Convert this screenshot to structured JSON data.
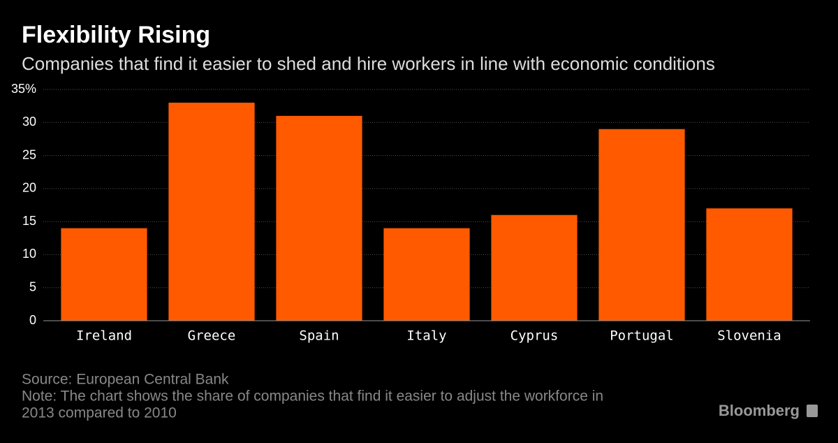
{
  "chart_data": {
    "type": "bar",
    "title": "Flexibility Rising",
    "subtitle": "Companies that find it easier to shed and hire workers in line with economic conditions",
    "categories": [
      "Ireland",
      "Greece",
      "Spain",
      "Italy",
      "Cyprus",
      "Portugal",
      "Slovenia"
    ],
    "values": [
      14,
      33,
      31,
      14,
      16,
      29,
      17
    ],
    "color": "#ff5a00",
    "ylim": [
      0,
      35
    ],
    "yticks": [
      0,
      5,
      10,
      15,
      20,
      25,
      30,
      {
        "value": 35,
        "label": "35%"
      }
    ],
    "grid": true,
    "source": "Source: European Central Bank",
    "note": [
      "Note: The chart shows the share of companies that find it easier to adjust the workforce in",
      "2013 compared to 2010"
    ],
    "brand": "Bloomberg"
  }
}
